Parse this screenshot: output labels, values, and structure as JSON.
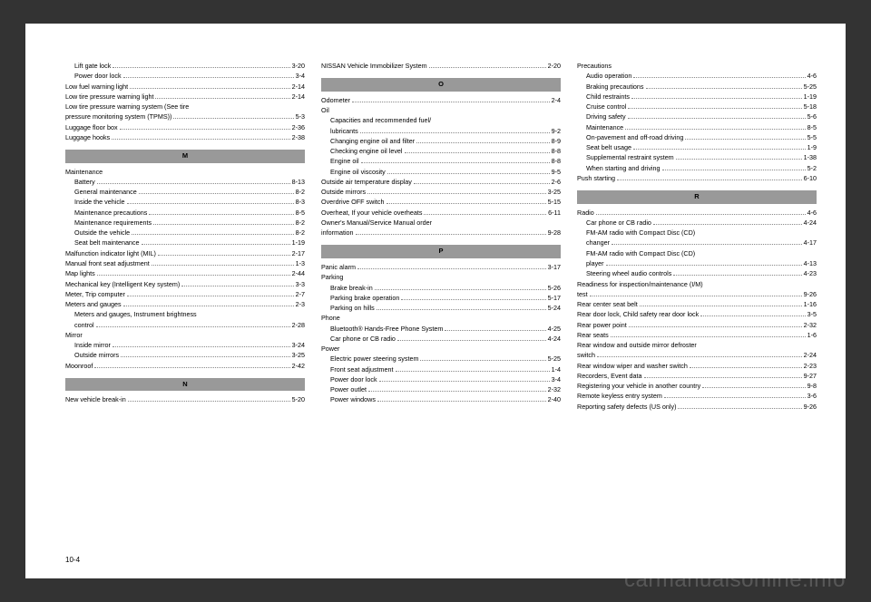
{
  "page_number": "10-4",
  "watermark": "carmanualsonline.info",
  "columns": [
    [
      {
        "t": "i",
        "label": "Lift gate lock",
        "page": "3-20"
      },
      {
        "t": "i",
        "label": "Power door lock",
        "page": "3-4"
      },
      {
        "t": "r",
        "label": "Low fuel warning light",
        "page": "2-14"
      },
      {
        "t": "r",
        "label": "Low tire pressure warning light",
        "page": "2-14"
      },
      {
        "t": "r",
        "label": "Low tire pressure warning system (See tire",
        "page": ""
      },
      {
        "t": "r",
        "label": "pressure monitoring system (TPMS))",
        "page": "5-3"
      },
      {
        "t": "r",
        "label": "Luggage floor box",
        "page": "2-36"
      },
      {
        "t": "r",
        "label": "Luggage hooks",
        "page": "2-38"
      },
      {
        "t": "h",
        "label": "M"
      },
      {
        "t": "r",
        "label": "Maintenance",
        "page": ""
      },
      {
        "t": "i",
        "label": "Battery",
        "page": "8-13"
      },
      {
        "t": "i",
        "label": "General maintenance",
        "page": "8-2"
      },
      {
        "t": "i",
        "label": "Inside the vehicle",
        "page": "8-3"
      },
      {
        "t": "i",
        "label": "Maintenance precautions",
        "page": "8-5"
      },
      {
        "t": "i",
        "label": "Maintenance requirements",
        "page": "8-2"
      },
      {
        "t": "i",
        "label": "Outside the vehicle",
        "page": "8-2"
      },
      {
        "t": "i",
        "label": "Seat belt maintenance",
        "page": "1-19"
      },
      {
        "t": "r",
        "label": "Malfunction indicator light (MIL)",
        "page": "2-17"
      },
      {
        "t": "r",
        "label": "Manual front seat adjustment",
        "page": "1-3"
      },
      {
        "t": "r",
        "label": "Map lights",
        "page": "2-44"
      },
      {
        "t": "r",
        "label": "Mechanical key (Intelligent Key system)",
        "page": "3-3"
      },
      {
        "t": "r",
        "label": "Meter, Trip computer",
        "page": "2-7"
      },
      {
        "t": "r",
        "label": "Meters and gauges",
        "page": "2-3"
      },
      {
        "t": "i",
        "label": "Meters and gauges, Instrument brightness",
        "page": ""
      },
      {
        "t": "i",
        "label": "control",
        "page": "2-28"
      },
      {
        "t": "r",
        "label": "Mirror",
        "page": ""
      },
      {
        "t": "i",
        "label": "Inside mirror",
        "page": "3-24"
      },
      {
        "t": "i",
        "label": "Outside mirrors",
        "page": "3-25"
      },
      {
        "t": "r",
        "label": "Moonroof",
        "page": "2-42"
      },
      {
        "t": "h",
        "label": "N"
      },
      {
        "t": "r",
        "label": "New vehicle break-in",
        "page": "5-20"
      }
    ],
    [
      {
        "t": "r",
        "label": "NISSAN Vehicle Immobilizer System",
        "page": "2-20"
      },
      {
        "t": "h",
        "label": "O"
      },
      {
        "t": "r",
        "label": "Odometer",
        "page": "2-4"
      },
      {
        "t": "r",
        "label": "Oil",
        "page": ""
      },
      {
        "t": "i",
        "label": "Capacities and recommended fuel/",
        "page": ""
      },
      {
        "t": "i",
        "label": "lubricants",
        "page": "9-2"
      },
      {
        "t": "i",
        "label": "Changing engine oil and filter",
        "page": "8-9"
      },
      {
        "t": "i",
        "label": "Checking engine oil level",
        "page": "8-8"
      },
      {
        "t": "i",
        "label": "Engine oil",
        "page": "8-8"
      },
      {
        "t": "i",
        "label": "Engine oil viscosity",
        "page": "9-5"
      },
      {
        "t": "r",
        "label": "Outside air temperature display",
        "page": "2-6"
      },
      {
        "t": "r",
        "label": "Outside mirrors",
        "page": "3-25"
      },
      {
        "t": "r",
        "label": "Overdrive OFF switch",
        "page": "5-15"
      },
      {
        "t": "r",
        "label": "Overheat, If your vehicle overheats",
        "page": "6-11"
      },
      {
        "t": "r",
        "label": "Owner's Manual/Service Manual order",
        "page": ""
      },
      {
        "t": "r",
        "label": "information",
        "page": "9-28"
      },
      {
        "t": "h",
        "label": "P"
      },
      {
        "t": "r",
        "label": "Panic alarm",
        "page": "3-17"
      },
      {
        "t": "r",
        "label": "Parking",
        "page": ""
      },
      {
        "t": "i",
        "label": "Brake break-in",
        "page": "5-26"
      },
      {
        "t": "i",
        "label": "Parking brake operation",
        "page": "5-17"
      },
      {
        "t": "i",
        "label": "Parking on hills",
        "page": "5-24"
      },
      {
        "t": "r",
        "label": "Phone",
        "page": ""
      },
      {
        "t": "i",
        "label": "Bluetooth® Hands-Free Phone System",
        "page": "4-25"
      },
      {
        "t": "i",
        "label": "Car phone or CB radio",
        "page": "4-24"
      },
      {
        "t": "r",
        "label": "Power",
        "page": ""
      },
      {
        "t": "i",
        "label": "Electric power steering system",
        "page": "5-25"
      },
      {
        "t": "i",
        "label": "Front seat adjustment",
        "page": "1-4"
      },
      {
        "t": "i",
        "label": "Power door lock",
        "page": "3-4"
      },
      {
        "t": "i",
        "label": "Power outlet",
        "page": "2-32"
      },
      {
        "t": "i",
        "label": "Power windows",
        "page": "2-40"
      }
    ],
    [
      {
        "t": "r",
        "label": "Precautions",
        "page": ""
      },
      {
        "t": "i",
        "label": "Audio operation",
        "page": "4-6"
      },
      {
        "t": "i",
        "label": "Braking precautions",
        "page": "5-25"
      },
      {
        "t": "i",
        "label": "Child restraints",
        "page": "1-19"
      },
      {
        "t": "i",
        "label": "Cruise control",
        "page": "5-18"
      },
      {
        "t": "i",
        "label": "Driving safety",
        "page": "5-6"
      },
      {
        "t": "i",
        "label": "Maintenance",
        "page": "8-5"
      },
      {
        "t": "i",
        "label": "On-pavement and off-road driving",
        "page": "5-5"
      },
      {
        "t": "i",
        "label": "Seat belt usage",
        "page": "1-9"
      },
      {
        "t": "i",
        "label": "Supplemental restraint system",
        "page": "1-38"
      },
      {
        "t": "i",
        "label": "When starting and driving",
        "page": "5-2"
      },
      {
        "t": "r",
        "label": "Push starting",
        "page": "6-10"
      },
      {
        "t": "h",
        "label": "R"
      },
      {
        "t": "r",
        "label": "Radio",
        "page": "4-6"
      },
      {
        "t": "i",
        "label": "Car phone or CB radio",
        "page": "4-24"
      },
      {
        "t": "i",
        "label": "FM-AM radio with Compact Disc (CD)",
        "page": ""
      },
      {
        "t": "i",
        "label": "changer",
        "page": "4-17"
      },
      {
        "t": "i",
        "label": "FM-AM radio with Compact Disc (CD)",
        "page": ""
      },
      {
        "t": "i",
        "label": "player",
        "page": "4-13"
      },
      {
        "t": "i",
        "label": "Steering wheel audio controls",
        "page": "4-23"
      },
      {
        "t": "r",
        "label": "Readiness for inspection/maintenance (I/M)",
        "page": ""
      },
      {
        "t": "r",
        "label": "test",
        "page": "9-26"
      },
      {
        "t": "r",
        "label": "Rear center seat belt",
        "page": "1-16"
      },
      {
        "t": "r",
        "label": "Rear door lock, Child safety rear door lock",
        "page": "3-5"
      },
      {
        "t": "r",
        "label": "Rear power point",
        "page": "2-32"
      },
      {
        "t": "r",
        "label": "Rear seats",
        "page": "1-6"
      },
      {
        "t": "r",
        "label": "Rear window and outside mirror defroster",
        "page": ""
      },
      {
        "t": "r",
        "label": "switch",
        "page": "2-24"
      },
      {
        "t": "r",
        "label": "Rear window wiper and washer switch",
        "page": "2-23"
      },
      {
        "t": "r",
        "label": "Recorders, Event data",
        "page": "9-27"
      },
      {
        "t": "r",
        "label": "Registering your vehicle in another country",
        "page": "9-8"
      },
      {
        "t": "r",
        "label": "Remote keyless entry system",
        "page": "3-6"
      },
      {
        "t": "r",
        "label": "Reporting safety defects (US only)",
        "page": "9-26"
      }
    ]
  ]
}
